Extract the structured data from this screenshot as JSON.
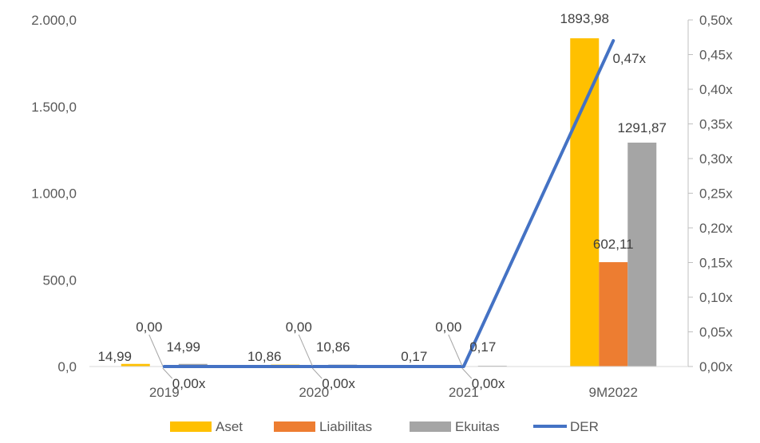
{
  "chart_data": {
    "type": "bar",
    "categories": [
      "2019",
      "2020",
      "2021",
      "9M2022"
    ],
    "series": [
      {
        "name": "Aset",
        "kind": "bar",
        "axis": "left",
        "color": "#FFC000",
        "values": [
          14.99,
          10.86,
          0.17,
          1893.98
        ],
        "labels": [
          "14,99",
          "10,86",
          "0,17",
          "1893,98"
        ]
      },
      {
        "name": "Liabilitas",
        "kind": "bar",
        "axis": "left",
        "color": "#ED7D31",
        "values": [
          0.0,
          0.0,
          0.0,
          602.11
        ],
        "labels": [
          "0,00",
          "0,00",
          "0,00",
          "602,11"
        ]
      },
      {
        "name": "Ekuitas",
        "kind": "bar",
        "axis": "left",
        "color": "#A5A5A5",
        "values": [
          14.99,
          10.86,
          0.17,
          1291.87
        ],
        "labels": [
          "14,99",
          "10,86",
          "0,17",
          "1291,87"
        ]
      },
      {
        "name": "DER",
        "kind": "line",
        "axis": "right",
        "color": "#4472C4",
        "values": [
          0.0,
          0.0,
          0.0,
          0.47
        ],
        "labels": [
          "0,00x",
          "0,00x",
          "0,00x",
          "0,47x"
        ]
      }
    ],
    "y_left": {
      "min": 0,
      "max": 2000,
      "ticks": [
        0,
        500,
        1000,
        1500,
        2000
      ],
      "tick_labels": [
        "0,0",
        "500,0",
        "1.000,0",
        "1.500,0",
        "2.000,0"
      ]
    },
    "y_right": {
      "min": 0,
      "max": 0.5,
      "ticks": [
        0,
        0.05,
        0.1,
        0.15,
        0.2,
        0.25,
        0.3,
        0.35,
        0.4,
        0.45,
        0.5
      ],
      "tick_labels": [
        "0,00x",
        "0,05x",
        "0,10x",
        "0,15x",
        "0,20x",
        "0,25x",
        "0,30x",
        "0,35x",
        "0,40x",
        "0,45x",
        "0,50x"
      ]
    },
    "grid": false,
    "legend_position": "bottom"
  }
}
